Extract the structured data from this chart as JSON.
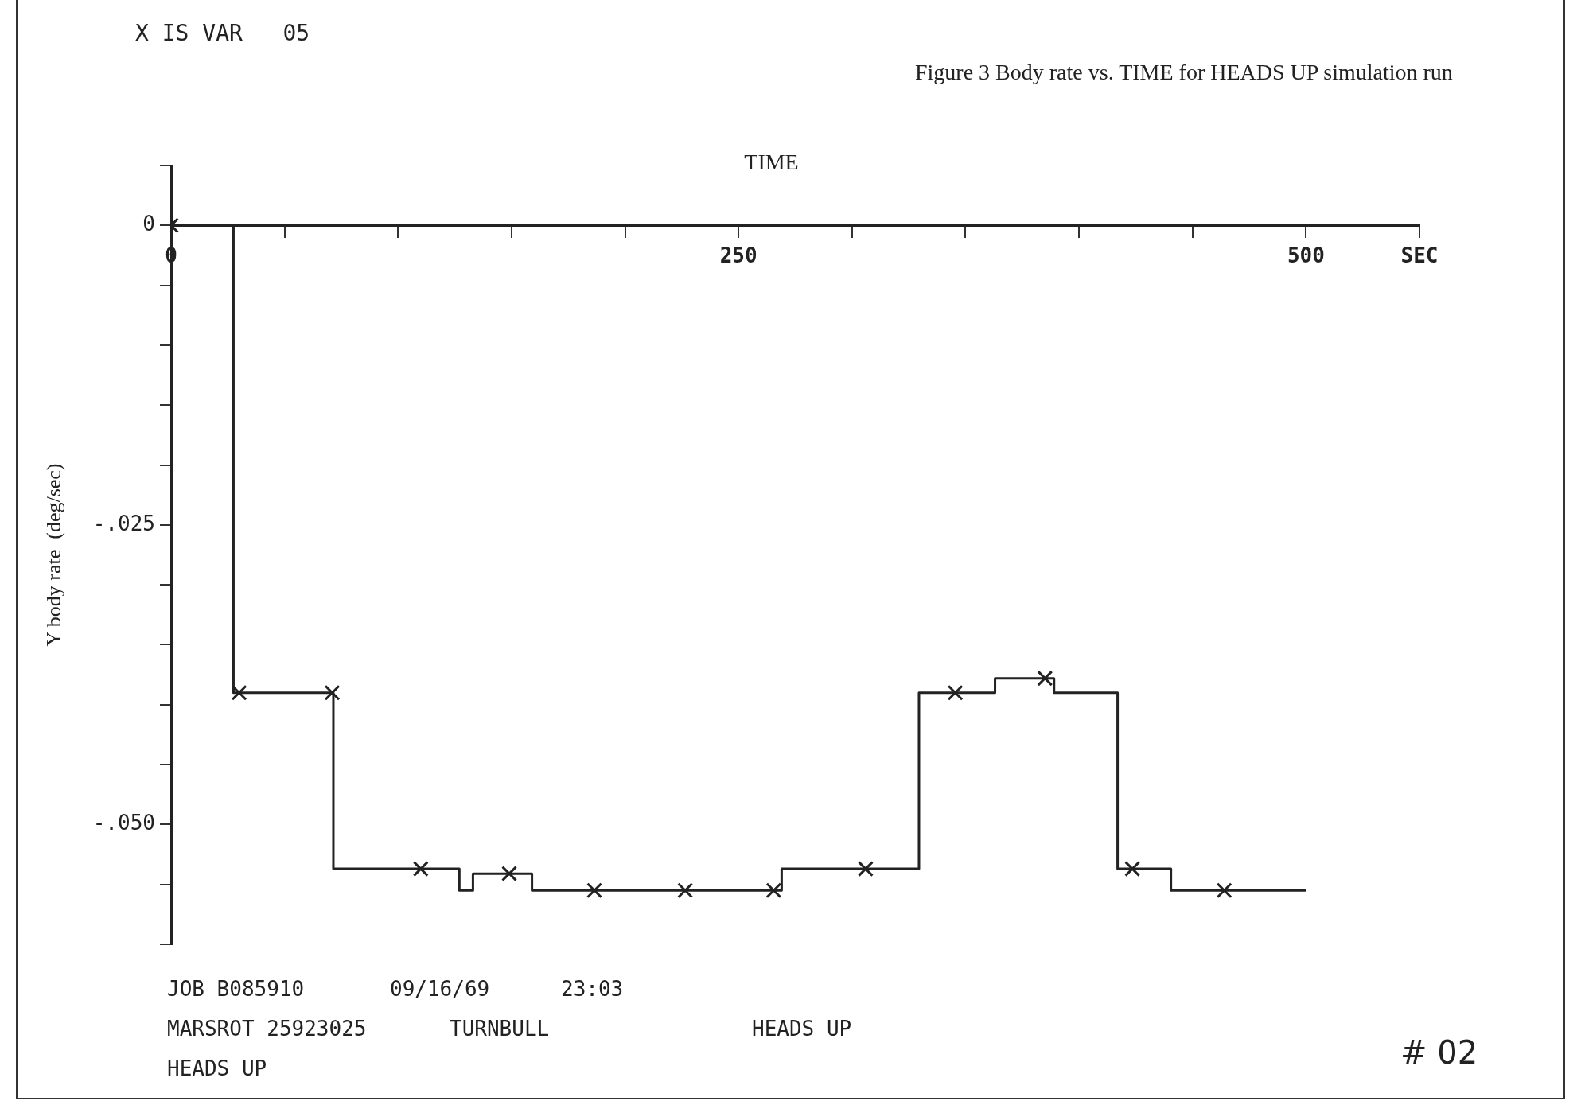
{
  "chart_data": {
    "type": "step",
    "title": "Figure 3    Body rate vs. TIME for HEADS UP simulation run",
    "xlabel": "TIME",
    "ylabel": "Y body rate  (deg/sec)",
    "annotations": [
      "X IS VAR   05",
      "JOB B085910",
      "09/16/69",
      "23:03",
      "MARSROT 25923025",
      "TURNBULL",
      "HEADS UP",
      "HEADS UP",
      "# 02"
    ],
    "series": [
      {
        "color": "#222222",
        "marker": "none",
        "x": [
          0,
          27.5,
          71.5,
          127,
          133,
          159,
          269,
          329.5,
          363,
          389,
          417,
          440.5,
          500
        ],
        "values": [
          0,
          -0.039,
          -0.0537,
          -0.0555,
          -0.0541,
          -0.0555,
          -0.0537,
          -0.039,
          -0.0378,
          -0.039,
          -0.0537,
          -0.0555,
          -0.0555
        ]
      },
      {
        "type": "scatter",
        "color": "#222222",
        "marker": "cross",
        "x": [
          0,
          30,
          71,
          110,
          149,
          186.5,
          226.5,
          265.5,
          306,
          345.5,
          385,
          423.5,
          464
        ],
        "values": [
          0,
          -0.039,
          -0.039,
          -0.0537,
          -0.0541,
          -0.0555,
          -0.0555,
          -0.0555,
          -0.0537,
          -0.039,
          -0.0378,
          -0.0537,
          -0.0555
        ]
      }
    ],
    "xlim": [
      0,
      550
    ],
    "xticks": [
      0,
      {
        "value": 50,
        "label": null
      },
      {
        "value": 100,
        "label": null
      },
      {
        "value": 150,
        "label": null
      },
      {
        "value": 200,
        "label": null
      },
      250,
      {
        "value": 300,
        "label": null
      },
      {
        "value": 350,
        "label": null
      },
      {
        "value": 400,
        "label": null
      },
      {
        "value": 450,
        "label": null
      },
      500,
      {
        "value": 550,
        "label": "SEC"
      }
    ],
    "ylim": [
      -0.06,
      0.005
    ],
    "yticks": [
      {
        "value": 0.005,
        "label": null
      },
      0,
      {
        "value": -0.005,
        "label": null
      },
      {
        "value": -0.01,
        "label": null
      },
      {
        "value": -0.015,
        "label": null
      },
      {
        "value": -0.02,
        "label": null
      },
      {
        "value": -0.025,
        "label": "-.025"
      },
      {
        "value": -0.03,
        "label": null
      },
      {
        "value": -0.035,
        "label": null
      },
      {
        "value": -0.04,
        "label": null
      },
      {
        "value": -0.045,
        "label": null
      },
      {
        "value": -0.05,
        "label": "-.050"
      },
      {
        "value": -0.055,
        "label": null
      },
      {
        "value": -0.06,
        "label": null
      }
    ],
    "grid": false,
    "legend": false
  }
}
